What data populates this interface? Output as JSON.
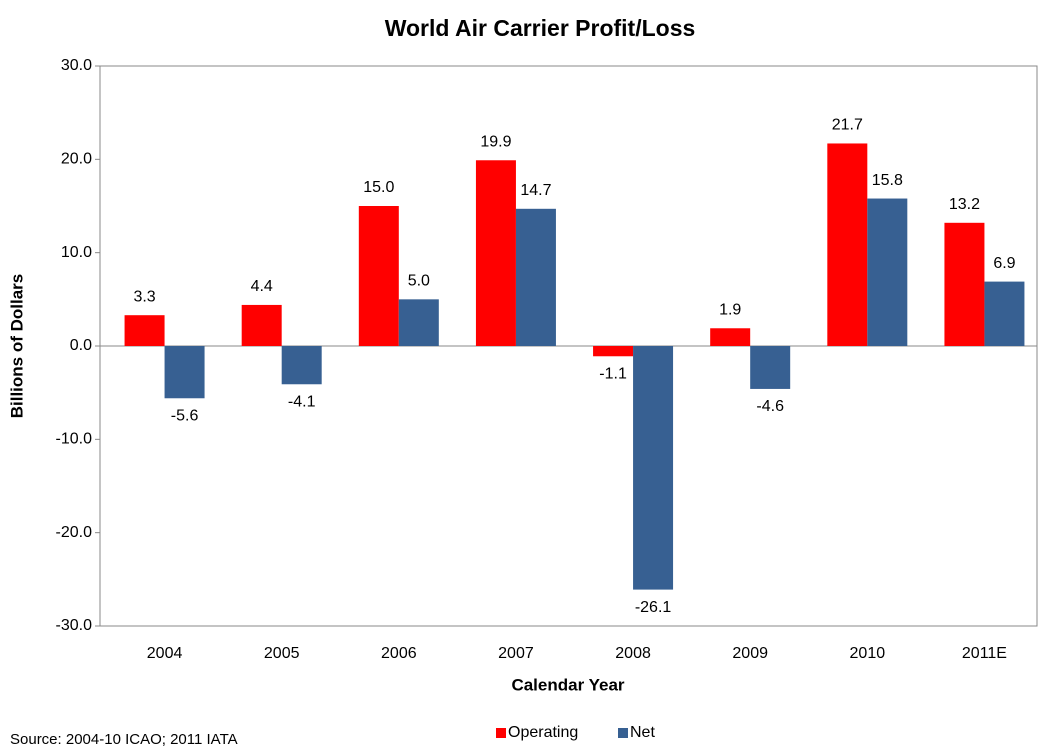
{
  "chart_data": {
    "type": "bar",
    "title": "World Air Carrier Profit/Loss",
    "y_label": "Billions of Dollars",
    "x_label": "Calendar Year",
    "source": "Source:  2004-10 ICAO; 2011 IATA",
    "categories": [
      "2004",
      "2005",
      "2006",
      "2007",
      "2008",
      "2009",
      "2010",
      "2011E"
    ],
    "series": [
      {
        "name": "Operating",
        "color": "#ff0000",
        "values": [
          3.3,
          4.4,
          15.0,
          19.9,
          -1.1,
          1.9,
          21.7,
          13.2
        ],
        "value_labels": [
          "3.3",
          "4.4",
          "15.0",
          "19.9",
          "-1.1",
          "1.9",
          "21.7",
          "13.2"
        ]
      },
      {
        "name": "Net",
        "color": "#376092",
        "values": [
          -5.6,
          -4.1,
          5.0,
          14.7,
          -26.1,
          -4.6,
          15.8,
          6.9
        ],
        "value_labels": [
          "-5.6",
          "-4.1",
          "5.0",
          "14.7",
          "-26.1",
          "-4.6",
          "15.8",
          "6.9"
        ]
      }
    ],
    "ylim": [
      -30,
      30
    ],
    "yticks": [
      {
        "value": -30,
        "label": "-30.0"
      },
      {
        "value": -20,
        "label": "-20.0"
      },
      {
        "value": -10,
        "label": "-10.0"
      },
      {
        "value": 0,
        "label": "0.0"
      },
      {
        "value": 10,
        "label": "10.0"
      },
      {
        "value": 20,
        "label": "20.0"
      },
      {
        "value": 30,
        "label": "30.0"
      }
    ],
    "grid": false,
    "legend": "bottom"
  }
}
